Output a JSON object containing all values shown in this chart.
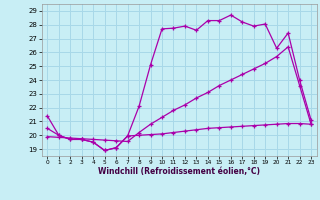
{
  "xlabel": "Windchill (Refroidissement éolien,°C)",
  "bg_color": "#c8eef5",
  "grid_color": "#a8d8e8",
  "line_color": "#aa00aa",
  "xlim": [
    -0.5,
    23.5
  ],
  "ylim": [
    18.5,
    29.5
  ],
  "yticks": [
    19,
    20,
    21,
    22,
    23,
    24,
    25,
    26,
    27,
    28,
    29
  ],
  "xticks": [
    0,
    1,
    2,
    3,
    4,
    5,
    6,
    7,
    8,
    9,
    10,
    11,
    12,
    13,
    14,
    15,
    16,
    17,
    18,
    19,
    20,
    21,
    22,
    23
  ],
  "line1_x": [
    0,
    1,
    2,
    3,
    4,
    5,
    6,
    7,
    8,
    9,
    10,
    11,
    12,
    13,
    14,
    15,
    16,
    17,
    18,
    19,
    20,
    21,
    22,
    23
  ],
  "line1_y": [
    21.4,
    20.0,
    19.7,
    19.7,
    19.5,
    18.9,
    19.1,
    19.95,
    22.1,
    25.1,
    27.7,
    27.75,
    27.9,
    27.6,
    28.3,
    28.3,
    28.7,
    28.2,
    27.9,
    28.05,
    26.3,
    27.4,
    24.0,
    21.1
  ],
  "line2_x": [
    0,
    1,
    2,
    3,
    4,
    5,
    6,
    7,
    8,
    9,
    10,
    11,
    12,
    13,
    14,
    15,
    16,
    17,
    18,
    19,
    20,
    21,
    22,
    23
  ],
  "line2_y": [
    19.9,
    19.85,
    19.8,
    19.75,
    19.7,
    19.65,
    19.6,
    19.55,
    20.2,
    20.8,
    21.3,
    21.8,
    22.2,
    22.7,
    23.1,
    23.6,
    24.0,
    24.4,
    24.8,
    25.2,
    25.7,
    26.4,
    23.6,
    20.8
  ],
  "line3_x": [
    0,
    1,
    2,
    3,
    4,
    5,
    6,
    7,
    8,
    9,
    10,
    11,
    12,
    13,
    14,
    15,
    16,
    17,
    18,
    19,
    20,
    21,
    22,
    23
  ],
  "line3_y": [
    20.5,
    20.0,
    19.7,
    19.7,
    19.5,
    18.9,
    19.1,
    19.95,
    20.0,
    20.05,
    20.1,
    20.2,
    20.3,
    20.4,
    20.5,
    20.55,
    20.6,
    20.65,
    20.7,
    20.75,
    20.8,
    20.85,
    20.85,
    20.8
  ]
}
